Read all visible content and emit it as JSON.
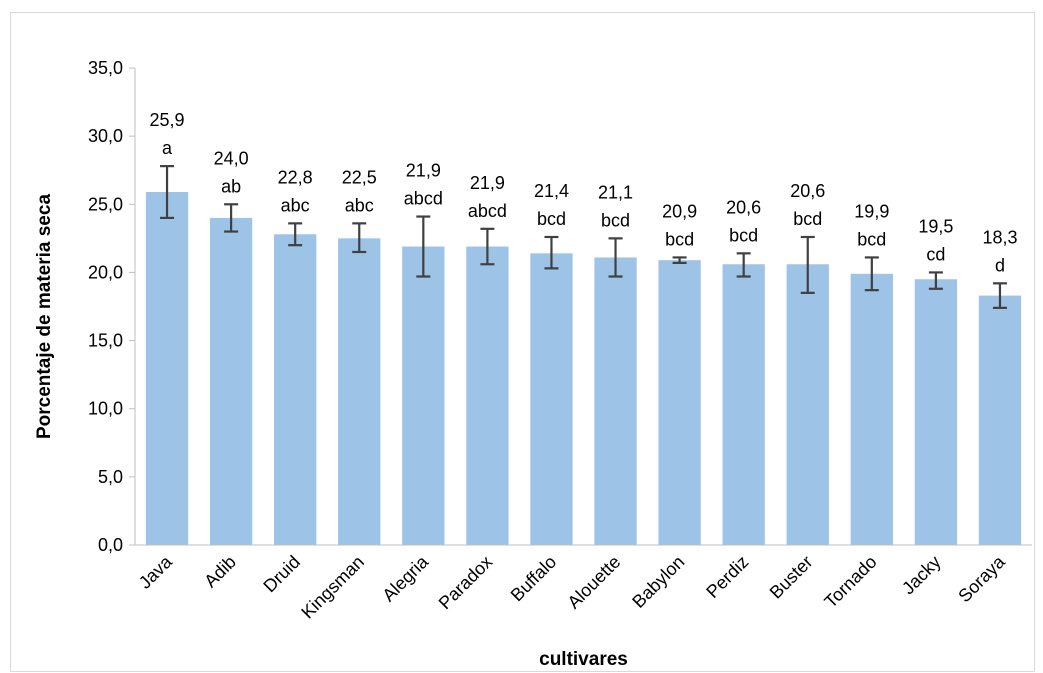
{
  "chart_data": {
    "type": "bar",
    "title": "",
    "xlabel": "cultivares",
    "ylabel": "Porcentaje de materia seca",
    "ylim": [
      0,
      35
    ],
    "yticks": [
      "0,0",
      "5,0",
      "10,0",
      "15,0",
      "20,0",
      "25,0",
      "30,0",
      "35,0"
    ],
    "grid": false,
    "legend": "none",
    "bar_color": "#9dc3e6",
    "error_bar_color": "#404040",
    "categories": [
      "Java",
      "Adib",
      "Druid",
      "Kingsman",
      "Alegria",
      "Paradox",
      "Buffalo",
      "Alouette",
      "Babylon",
      "Perdiz",
      "Buster",
      "Tornado",
      "Jacky",
      "Soraya"
    ],
    "values": [
      25.9,
      24.0,
      22.8,
      22.5,
      21.9,
      21.9,
      21.4,
      21.1,
      20.9,
      20.6,
      20.6,
      19.9,
      19.5,
      18.3
    ],
    "error_low": [
      24.0,
      23.0,
      22.0,
      21.5,
      19.7,
      20.6,
      20.3,
      19.7,
      20.7,
      19.7,
      18.5,
      18.7,
      18.8,
      17.4
    ],
    "error_high": [
      27.8,
      25.0,
      23.6,
      23.6,
      24.1,
      23.2,
      22.6,
      22.5,
      21.1,
      21.4,
      22.6,
      21.1,
      20.0,
      19.2
    ],
    "value_labels": [
      "25,9",
      "24,0",
      "22,8",
      "22,5",
      "21,9",
      "21,9",
      "21,4",
      "21,1",
      "20,9",
      "20,6",
      "20,6",
      "19,9",
      "19,5",
      "18,3"
    ],
    "significance_letters": [
      "a",
      "ab",
      "abc",
      "abc",
      "abcd",
      "abcd",
      "bcd",
      "bcd",
      "bcd",
      "bcd",
      "bcd",
      "bcd",
      "cd",
      "d"
    ]
  }
}
